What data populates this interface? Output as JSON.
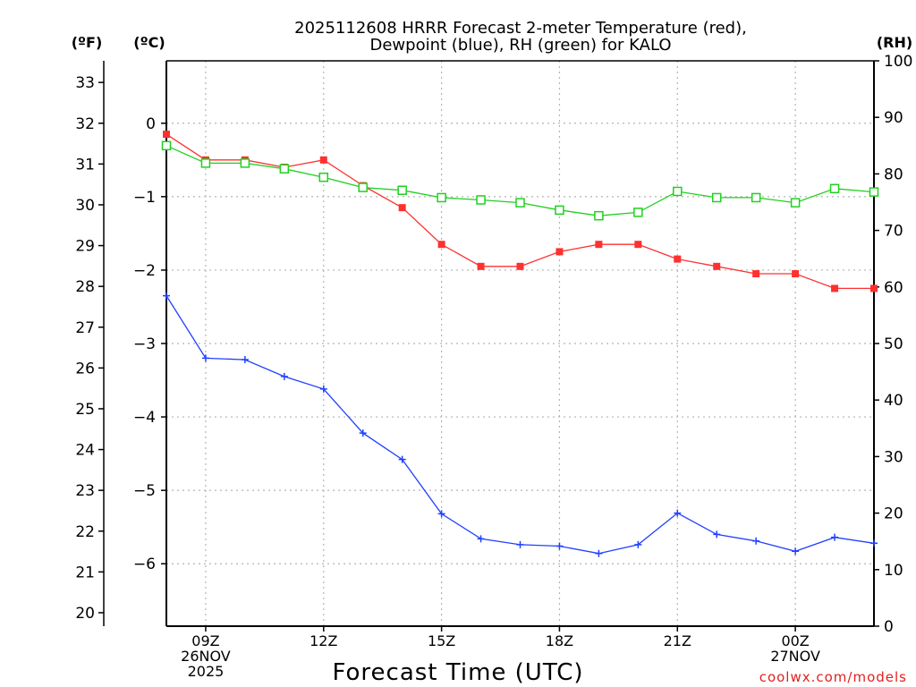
{
  "chart_data": {
    "type": "line",
    "title_line1": "2025112608 HRRR Forecast 2-meter Temperature (red),",
    "title_line2": "Dewpoint (blue), RH (green) for KALO",
    "left_outer_unit": "(ºF)",
    "left_inner_unit": "(ºC)",
    "right_unit": "(RH)",
    "xlabel": "Forecast Time (UTC)",
    "watermark": "coolwx.com/models",
    "x_hours": [
      8,
      9,
      10,
      11,
      12,
      13,
      14,
      15,
      16,
      17,
      18,
      19,
      20,
      21,
      22,
      23,
      24,
      25,
      26
    ],
    "x_ticks": [
      {
        "hour": 9,
        "lines": [
          "09Z",
          "26NOV",
          "2025"
        ]
      },
      {
        "hour": 12,
        "lines": [
          "12Z"
        ]
      },
      {
        "hour": 15,
        "lines": [
          "15Z"
        ]
      },
      {
        "hour": 18,
        "lines": [
          "18Z"
        ]
      },
      {
        "hour": 21,
        "lines": [
          "21Z"
        ]
      },
      {
        "hour": 24,
        "lines": [
          "00Z",
          "27NOV"
        ]
      }
    ],
    "xlim": [
      8,
      26
    ],
    "ylim_celsius": [
      -6.85,
      0.85
    ],
    "fahrenheit_ticks": [
      20,
      21,
      22,
      23,
      24,
      25,
      26,
      27,
      28,
      29,
      30,
      31,
      32,
      33
    ],
    "celsius_ticks": [
      0,
      -1,
      -2,
      -3,
      -4,
      -5,
      -6
    ],
    "rh_ticks": [
      0,
      10,
      20,
      30,
      40,
      50,
      60,
      70,
      80,
      90,
      100
    ],
    "ylim_rh": [
      0,
      100
    ],
    "series": [
      {
        "name": "Temperature",
        "axis": "celsius",
        "color": "#ff3030",
        "marker": "filled-square",
        "values": [
          -0.15,
          -0.5,
          -0.5,
          -0.6,
          -0.5,
          -0.85,
          -1.15,
          -1.65,
          -1.95,
          -1.95,
          -1.75,
          -1.65,
          -1.65,
          -1.85,
          -1.95,
          -2.05,
          -2.05,
          -2.25,
          -2.25
        ]
      },
      {
        "name": "Dewpoint",
        "axis": "celsius",
        "color": "#2040ff",
        "marker": "plus",
        "values": [
          -2.35,
          -3.2,
          -3.22,
          -3.45,
          -3.62,
          -4.22,
          -4.58,
          -5.32,
          -5.66,
          -5.74,
          -5.76,
          -5.86,
          -5.74,
          -5.31,
          -5.6,
          -5.69,
          -5.83,
          -5.64,
          -5.72
        ]
      },
      {
        "name": "RH",
        "axis": "rh",
        "color": "#20d020",
        "marker": "open-square",
        "values": [
          85,
          81.9,
          81.9,
          80.9,
          79.4,
          77.6,
          77.1,
          75.8,
          75.4,
          74.9,
          73.6,
          72.6,
          73.2,
          76.9,
          75.8,
          75.8,
          74.9,
          77.4,
          76.8
        ]
      }
    ]
  }
}
